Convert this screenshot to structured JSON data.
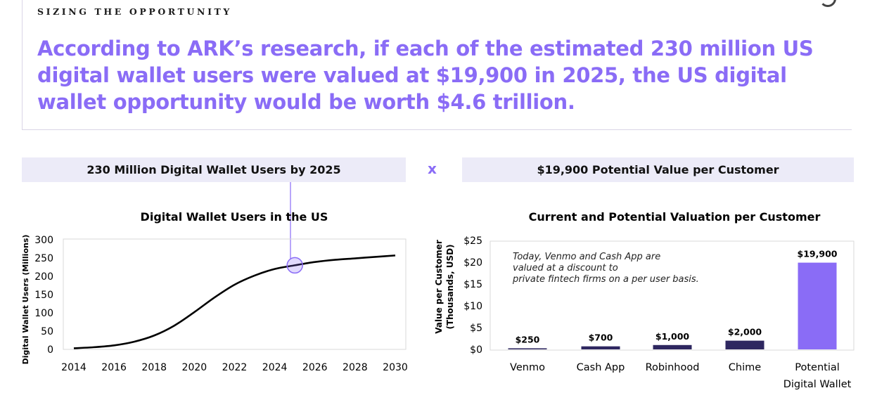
{
  "header": {
    "eyebrow": "SIZING THE OPPORTUNITY",
    "headline": "According to ARK’s research, if each of the estimated 230 million US digital wallet users were valued at $19,900 in 2025, the US digital wallet opportunity would be worth $4.6 trillion."
  },
  "banners": {
    "left": "230 Million Digital Wallet Users by 2025",
    "operator": "x",
    "right": "$19,900 Potential Value per Customer"
  },
  "colors": {
    "accent": "#8a6cf6",
    "dark_bar": "#2e2760",
    "banner_bg": "#ecebf8",
    "line": "#000000"
  },
  "chart_data": [
    {
      "type": "line",
      "title": "Digital Wallet Users in the US",
      "xlabel": "",
      "ylabel": "Digital Wallet Users (Millions)",
      "xlim": [
        2014,
        2030
      ],
      "ylim": [
        0,
        300
      ],
      "x_ticks": [
        2014,
        2016,
        2018,
        2020,
        2022,
        2024,
        2026,
        2028,
        2030
      ],
      "y_ticks": [
        0,
        50,
        100,
        150,
        200,
        250,
        300
      ],
      "grid": false,
      "series": [
        {
          "x": [
            2014,
            2015,
            2016,
            2017,
            2018,
            2019,
            2020,
            2021,
            2022,
            2023,
            2024,
            2025,
            2026,
            2027,
            2028,
            2029,
            2030
          ],
          "values": [
            3,
            6,
            11,
            21,
            38,
            65,
            102,
            142,
            177,
            202,
            220,
            230,
            239,
            245,
            249,
            253,
            257
          ]
        }
      ],
      "highlight": {
        "x": 2025,
        "y": 230
      }
    },
    {
      "type": "bar",
      "title": "Current and Potential Valuation per Customer",
      "ylabel": "Value per Customer (Thousands, USD)",
      "ylim": [
        0,
        25
      ],
      "y_ticks": [
        0,
        5,
        10,
        15,
        20,
        25
      ],
      "y_tick_labels": [
        "$0",
        "$5",
        "$10",
        "$15",
        "$20",
        "$25"
      ],
      "categories": [
        "Venmo",
        "Cash App",
        "Robinhood",
        "Chime",
        "Potential Digital Wallet"
      ],
      "values": [
        0.25,
        0.7,
        1.0,
        2.0,
        19.9
      ],
      "data_labels": [
        "$250",
        "$700",
        "$1,000",
        "$2,000",
        "$19,900"
      ],
      "annotation": "Today, Venmo and Cash App are valued at a discount to private fintech firms on a per user basis."
    }
  ]
}
